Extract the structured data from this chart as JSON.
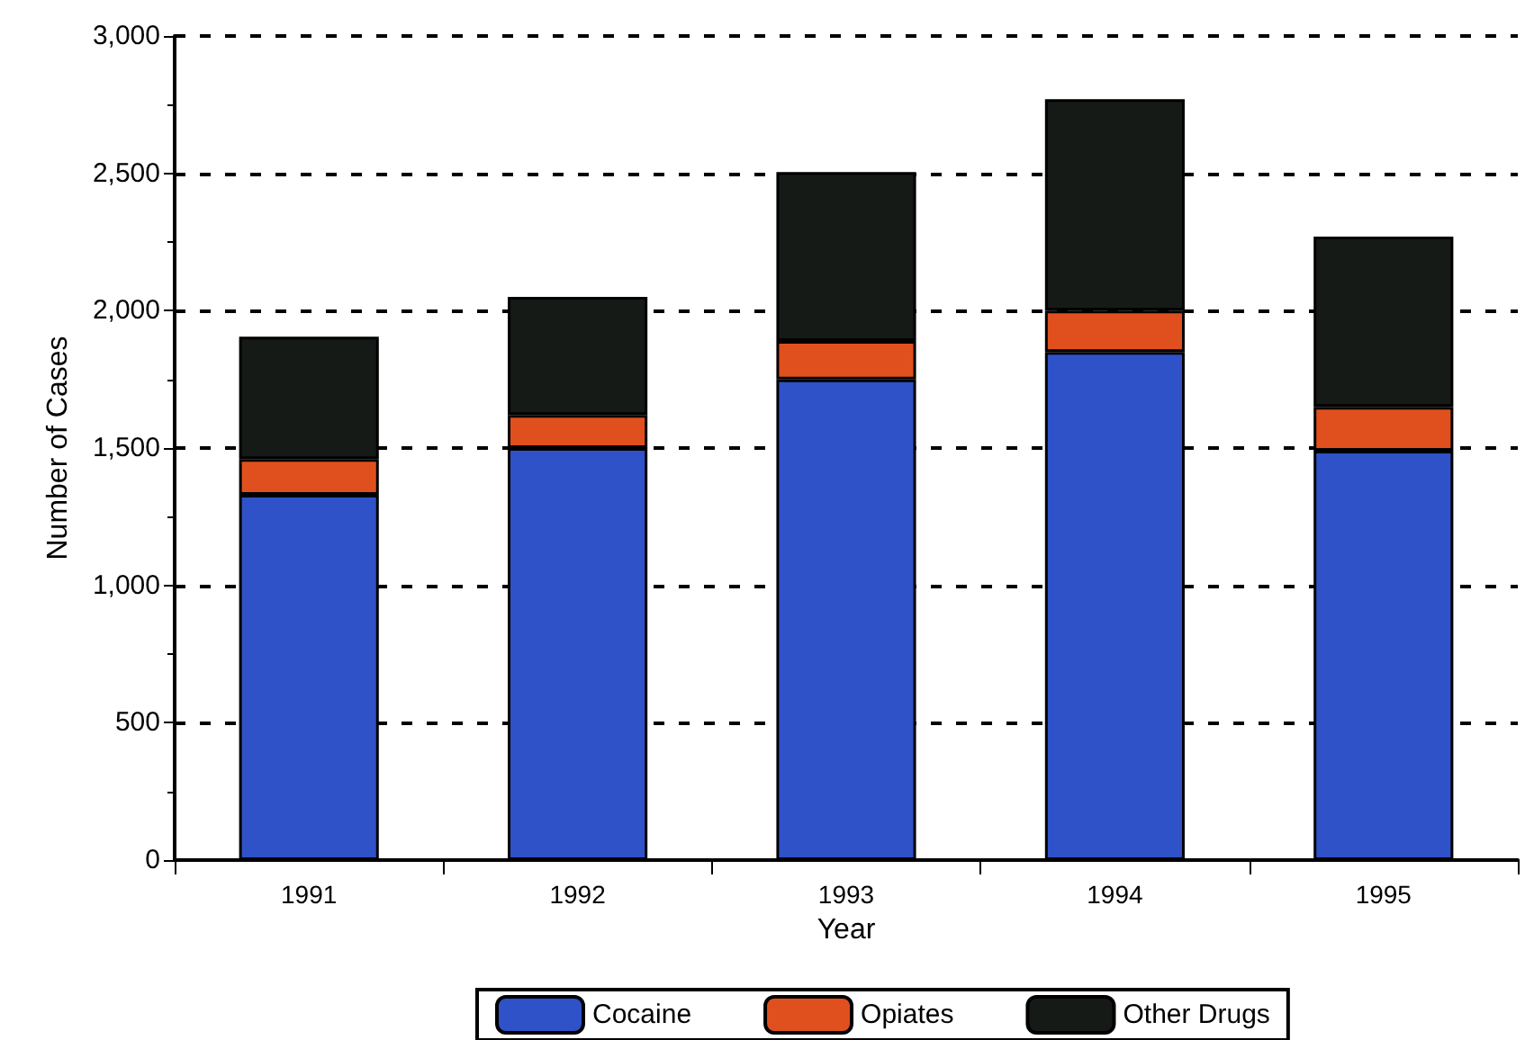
{
  "chart_data": {
    "type": "bar",
    "stacked": true,
    "xlabel": "Year",
    "ylabel": "Number of Cases",
    "categories": [
      "1991",
      "1992",
      "1993",
      "1994",
      "1995"
    ],
    "series": [
      {
        "name": "Cocaine",
        "color": "#2f52c8",
        "values": [
          1330,
          1500,
          1750,
          1850,
          1490
        ]
      },
      {
        "name": "Opiates",
        "color": "#e0501e",
        "values": [
          130,
          120,
          140,
          150,
          160
        ]
      },
      {
        "name": "Other Drugs",
        "color": "#161a16",
        "values": [
          445,
          430,
          615,
          770,
          620
        ]
      }
    ],
    "ylim": [
      0,
      3000
    ],
    "yticks": [
      0,
      500,
      {
        "value": 1000,
        "label": "1,000"
      },
      {
        "value": 1500,
        "label": "1,500"
      },
      {
        "value": 2000,
        "label": "2,000"
      },
      {
        "value": 2500,
        "label": "2,500"
      },
      {
        "value": 3000,
        "label": "3,000"
      }
    ],
    "grid": "y",
    "line_style": "dashed",
    "legend": "bottom"
  }
}
